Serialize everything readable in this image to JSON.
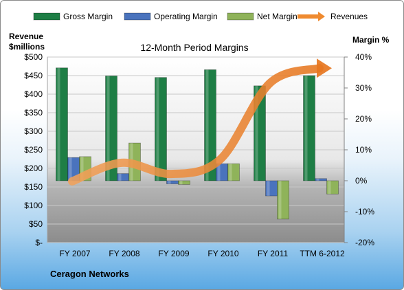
{
  "chart_data": {
    "type": "bar",
    "title": "12-Month Period Margins",
    "categories": [
      "FY 2007",
      "FY 2008",
      "FY 2009",
      "FY 2010",
      "FY 2011",
      "TTM 6-2012"
    ],
    "series": [
      {
        "name": "Gross Margin",
        "axis": "right",
        "unit": "%",
        "color": "#1e7e45",
        "values": [
          36.5,
          33.9,
          33.4,
          35.9,
          30.7,
          34.0
        ]
      },
      {
        "name": "Operating Margin",
        "axis": "right",
        "unit": "%",
        "color": "#4a73bd",
        "values": [
          7.5,
          2.3,
          -1.0,
          5.5,
          -4.9,
          0.7
        ]
      },
      {
        "name": "Net Margin",
        "axis": "right",
        "unit": "%",
        "color": "#8fb35a",
        "values": [
          7.8,
          12.2,
          -1.2,
          5.5,
          -12.4,
          -4.3
        ]
      },
      {
        "name": "Revenues",
        "axis": "left",
        "type": "line",
        "color": "#ef8a2f",
        "values": [
          165,
          215,
          185,
          225,
          430,
          470
        ]
      }
    ],
    "left_axis": {
      "label_line1": "Revenue",
      "label_line2": "$millions",
      "ticks": [
        "$500",
        "$450",
        "$400",
        "$350",
        "$300",
        "$250",
        "$200",
        "$150",
        "$100",
        "$50",
        "$-"
      ],
      "min": 0,
      "max": 500
    },
    "right_axis": {
      "label": "Margin %",
      "ticks": [
        "40%",
        "30%",
        "20%",
        "10%",
        "0%",
        "-10%",
        "-20%"
      ],
      "min": -20,
      "max": 40
    },
    "legend_position": "top",
    "grid": true
  },
  "footer_label": "Ceragon Networks"
}
